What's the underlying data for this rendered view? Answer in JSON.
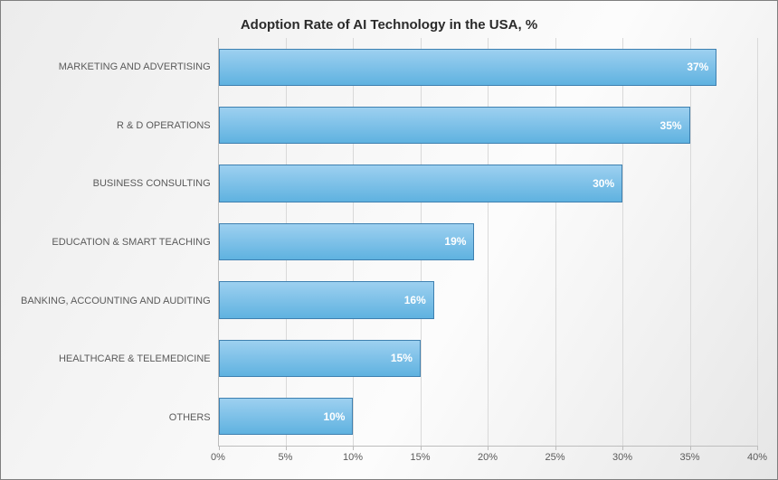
{
  "chart": {
    "type": "bar-horizontal",
    "title": "Adoption Rate of AI Technology in the USA, %",
    "title_fontsize": 15,
    "title_color": "#2a2a2a",
    "background_gradient": [
      "#ececec",
      "#f7f7f7",
      "#fcfcfc",
      "#e6e6e6"
    ],
    "frame_border_color": "#7f7f7f",
    "axis_line_color": "#bdbdbd",
    "grid_color": "#d9d9d9",
    "xlim": [
      0,
      40
    ],
    "xtick_step": 5,
    "xticks": [
      "0%",
      "5%",
      "10%",
      "15%",
      "20%",
      "25%",
      "30%",
      "35%",
      "40%"
    ],
    "y_label_fontsize": 11,
    "y_label_color": "#5a5a5a",
    "x_label_fontsize": 11,
    "x_label_color": "#5a5a5a",
    "bar_fill_top": "#9dd0f0",
    "bar_fill_bottom": "#5fb2e0",
    "bar_border_color": "#3e80b0",
    "bar_value_fontsize": 12,
    "bar_value_color": "#ffffff",
    "bar_value_weight": "bold",
    "categories": [
      {
        "label": "MARKETING AND ADVERTISING",
        "value": 37,
        "value_label": "37%"
      },
      {
        "label": "R & D OPERATIONS",
        "value": 35,
        "value_label": "35%"
      },
      {
        "label": "BUSINESS CONSULTING",
        "value": 30,
        "value_label": "30%"
      },
      {
        "label": "EDUCATION & SMART TEACHING",
        "value": 19,
        "value_label": "19%"
      },
      {
        "label": "BANKING, ACCOUNTING AND AUDITING",
        "value": 16,
        "value_label": "16%"
      },
      {
        "label": "HEALTHCARE & TELEMEDICINE",
        "value": 15,
        "value_label": "15%"
      },
      {
        "label": "OTHERS",
        "value": 10,
        "value_label": "10%"
      }
    ]
  }
}
